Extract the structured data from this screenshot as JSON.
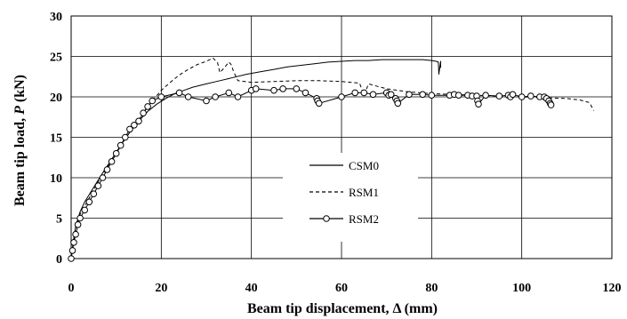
{
  "chart_data": {
    "type": "line",
    "xlabel": "Beam tip displacement, Δ (mm)",
    "ylabel_prefix": "Beam tip load, ",
    "ylabel_symbol": "P",
    "ylabel_suffix": " (kN)",
    "xlim": [
      0,
      120
    ],
    "ylim": [
      0,
      30
    ],
    "xticks": [
      "0",
      "20",
      "40",
      "60",
      "80",
      "100",
      "120"
    ],
    "yticks": [
      "0",
      "5",
      "10",
      "15",
      "20",
      "25",
      "30"
    ],
    "grid": true,
    "legend_position": "center",
    "series": [
      {
        "name": "CSM0",
        "style": "solid",
        "color": "#000000",
        "x": [
          0,
          0.5,
          1,
          2,
          3,
          5,
          7,
          9,
          11,
          13,
          15,
          17,
          19,
          21,
          23,
          25,
          27,
          30,
          33,
          36,
          39,
          42,
          45,
          48,
          51,
          54,
          57,
          60,
          63,
          66,
          69,
          72,
          75,
          78,
          80,
          81,
          81.5,
          81.6,
          82,
          82
        ],
        "y": [
          0,
          2.2,
          4.0,
          5.8,
          7.0,
          8.8,
          10.6,
          12.3,
          14.0,
          15.6,
          17.0,
          18.2,
          19.1,
          19.8,
          20.4,
          20.8,
          21.2,
          21.6,
          22.0,
          22.4,
          22.8,
          23.1,
          23.4,
          23.7,
          23.9,
          24.1,
          24.3,
          24.4,
          24.5,
          24.5,
          24.6,
          24.6,
          24.6,
          24.6,
          24.5,
          24.4,
          24.3,
          22.8,
          24.4,
          23.6
        ]
      },
      {
        "name": "RSM1",
        "style": "dashed",
        "color": "#000000",
        "x": [
          0,
          0.5,
          1,
          2,
          4,
          6,
          8,
          10,
          12,
          14,
          16,
          18,
          20,
          22,
          24,
          26,
          28,
          30,
          31.5,
          32.5,
          33,
          34,
          35,
          35.5,
          36,
          37,
          40,
          45,
          50,
          55,
          60,
          62,
          64,
          65,
          66,
          68,
          70,
          75,
          80,
          85,
          90,
          95,
          100,
          105,
          110,
          113,
          115,
          116
        ],
        "y": [
          0,
          2.0,
          3.5,
          5.5,
          7.5,
          9.5,
          11.3,
          13.0,
          14.8,
          16.4,
          18.0,
          19.5,
          20.8,
          21.8,
          22.7,
          23.4,
          24.0,
          24.4,
          24.8,
          24.2,
          23.0,
          23.6,
          24.3,
          24.0,
          23.2,
          22.0,
          21.8,
          21.9,
          22.0,
          22.0,
          21.9,
          21.8,
          21.7,
          20.2,
          21.6,
          21.3,
          21.0,
          20.6,
          20.4,
          20.3,
          20.2,
          20.1,
          20.0,
          19.9,
          19.8,
          19.6,
          19.3,
          18.3
        ]
      },
      {
        "name": "RSM2",
        "style": "solid-circle",
        "color": "#000000",
        "x": [
          0,
          0.3,
          0.6,
          1,
          1.5,
          2,
          3,
          4,
          5,
          6,
          7,
          8,
          9,
          10,
          11,
          12,
          13,
          14,
          15,
          16,
          17,
          18,
          20,
          24,
          26,
          30,
          32,
          35,
          37,
          40,
          41,
          45,
          47,
          50,
          52,
          54.5,
          54.7,
          55,
          60,
          63,
          65,
          67,
          70,
          70.5,
          71,
          72,
          72.3,
          72.5,
          75,
          78,
          80,
          84,
          85,
          86,
          88,
          89,
          90,
          90.2,
          90.4,
          92,
          95,
          97,
          97.5,
          98,
          100,
          102,
          104,
          105,
          105.5,
          106,
          106.3,
          106.5
        ],
        "y": [
          0,
          1.0,
          2.0,
          3.0,
          4.2,
          5.0,
          6.0,
          7.0,
          8.0,
          9.0,
          10.0,
          11.0,
          12.0,
          13.0,
          14.0,
          15.0,
          16.0,
          16.5,
          17.0,
          18.0,
          18.8,
          19.5,
          20.0,
          20.5,
          20.0,
          19.5,
          20.0,
          20.5,
          20.0,
          20.8,
          21.0,
          20.8,
          21.0,
          21.0,
          20.5,
          19.8,
          19.5,
          19.2,
          20.0,
          20.5,
          20.5,
          20.3,
          20.5,
          20.2,
          20.3,
          19.8,
          19.5,
          19.2,
          20.3,
          20.3,
          20.2,
          20.2,
          20.3,
          20.2,
          20.2,
          20.1,
          20.1,
          19.5,
          19.1,
          20.2,
          20.1,
          20.2,
          20.0,
          20.3,
          20.0,
          20.1,
          20.0,
          20.0,
          19.8,
          19.5,
          19.2,
          19.0
        ]
      }
    ]
  }
}
